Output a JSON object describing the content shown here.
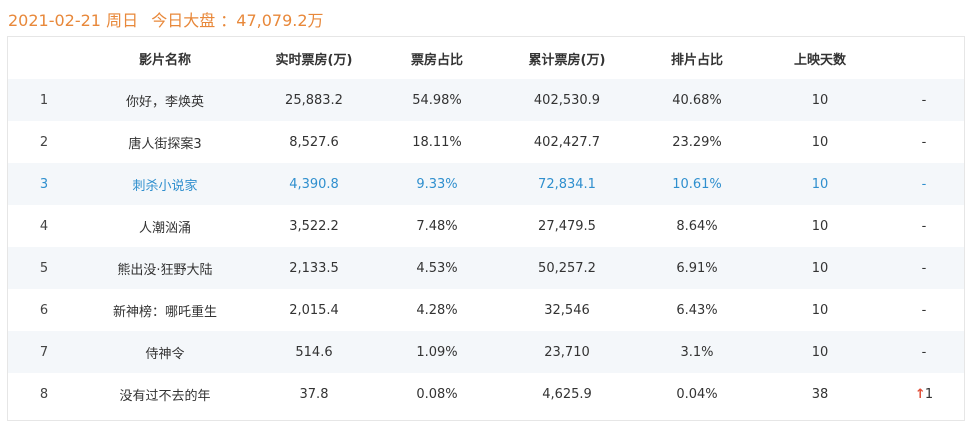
{
  "header": {
    "date": "2021-02-21",
    "weekday": "周日",
    "market_label": "今日大盘",
    "market_value": "：47,079.2万"
  },
  "table": {
    "columns": [
      "",
      "影片名称",
      "实时票房(万)",
      "票房占比",
      "累计票房(万)",
      "排片占比",
      "上映天数",
      ""
    ],
    "rows": [
      {
        "rank": "1",
        "name": "你好，李焕英",
        "realtime": "25,883.2",
        "share": "54.98%",
        "total": "402,530.9",
        "schedule": "40.68%",
        "days": "10",
        "trend": "-"
      },
      {
        "rank": "2",
        "name": "唐人街探案3",
        "realtime": "8,527.6",
        "share": "18.11%",
        "total": "402,427.7",
        "schedule": "23.29%",
        "days": "10",
        "trend": "-"
      },
      {
        "rank": "3",
        "name": "刺杀小说家",
        "realtime": "4,390.8",
        "share": "9.33%",
        "total": "72,834.1",
        "schedule": "10.61%",
        "days": "10",
        "trend": "-"
      },
      {
        "rank": "4",
        "name": "人潮汹涌",
        "realtime": "3,522.2",
        "share": "7.48%",
        "total": "27,479.5",
        "schedule": "8.64%",
        "days": "10",
        "trend": "-"
      },
      {
        "rank": "5",
        "name": "熊出没·狂野大陆",
        "realtime": "2,133.5",
        "share": "4.53%",
        "total": "50,257.2",
        "schedule": "6.91%",
        "days": "10",
        "trend": "-"
      },
      {
        "rank": "6",
        "name": "新神榜：哪吒重生",
        "realtime": "2,015.4",
        "share": "4.28%",
        "total": "32,546",
        "schedule": "6.43%",
        "days": "10",
        "trend": "-"
      },
      {
        "rank": "7",
        "name": "侍神令",
        "realtime": "514.6",
        "share": "1.09%",
        "total": "23,710",
        "schedule": "3.1%",
        "days": "10",
        "trend": "-"
      },
      {
        "rank": "8",
        "name": "没有过不去的年",
        "realtime": "37.8",
        "share": "0.08%",
        "total": "4,625.9",
        "schedule": "0.04%",
        "days": "38",
        "trend_arrow": "↑",
        "trend": "1"
      }
    ]
  },
  "colors": {
    "header_orange": "#e8883a",
    "highlight_blue": "#2f8fce",
    "row_stripe": "#f4f7fa",
    "trend_up_red": "#e0503a"
  }
}
